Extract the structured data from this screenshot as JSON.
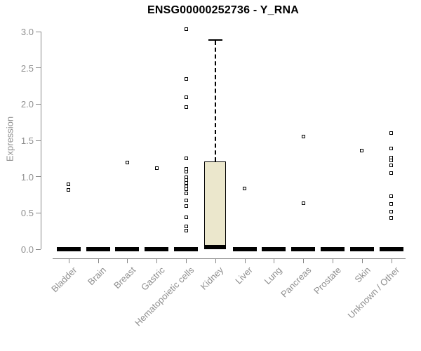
{
  "chart_data": {
    "type": "boxplot",
    "title": "ENSG00000252736 - Y_RNA",
    "xlabel": "",
    "ylabel": "Expression",
    "ylim": [
      0.0,
      3.0
    ],
    "ytick_labels": [
      "0.0",
      "0.5",
      "1.0",
      "1.5",
      "2.0",
      "2.5",
      "3.0"
    ],
    "grid": false,
    "legend": "none",
    "marker": "open-square",
    "colors": {
      "box_fill": "#EBE7CC",
      "box_stroke": "#000000",
      "collapsed_box": "#000000",
      "axis": "#888888",
      "tick_text": "#8f8f8f",
      "title_text": "#000000",
      "background": "#ffffff"
    },
    "categories": [
      "Bladder",
      "Brain",
      "Breast",
      "Gastric",
      "Hematopoietic cells",
      "Kidney",
      "Liver",
      "Lung",
      "Pancreas",
      "Prostate",
      "Skin",
      "Unknown / Other"
    ],
    "series": [
      {
        "category": "Bladder",
        "box": {
          "low": 0,
          "q1": 0,
          "median": 0,
          "q3": 0,
          "high": 0
        },
        "outliers": [
          0.9,
          0.82
        ]
      },
      {
        "category": "Brain",
        "box": {
          "low": 0,
          "q1": 0,
          "median": 0,
          "q3": 0,
          "high": 0
        },
        "outliers": []
      },
      {
        "category": "Breast",
        "box": {
          "low": 0,
          "q1": 0,
          "median": 0,
          "q3": 0,
          "high": 0
        },
        "outliers": [
          1.2
        ]
      },
      {
        "category": "Gastric",
        "box": {
          "low": 0,
          "q1": 0,
          "median": 0,
          "q3": 0,
          "high": 0
        },
        "outliers": [
          1.12
        ]
      },
      {
        "category": "Hematopoietic cells",
        "box": {
          "low": 0,
          "q1": 0,
          "median": 0,
          "q3": 0,
          "high": 0
        },
        "outliers": [
          3.03,
          2.35,
          2.1,
          1.96,
          1.25,
          1.11,
          1.07,
          0.99,
          0.95,
          0.91,
          0.87,
          0.83,
          0.77,
          0.67,
          0.6,
          0.44,
          0.31,
          0.26
        ]
      },
      {
        "category": "Kidney",
        "box": {
          "low": 0,
          "q1": 0,
          "median": 0.03,
          "q3": 1.21,
          "high": 2.87
        },
        "outliers": []
      },
      {
        "category": "Liver",
        "box": {
          "low": 0,
          "q1": 0,
          "median": 0,
          "q3": 0,
          "high": 0
        },
        "outliers": [
          0.84
        ]
      },
      {
        "category": "Lung",
        "box": {
          "low": 0,
          "q1": 0,
          "median": 0,
          "q3": 0,
          "high": 0
        },
        "outliers": []
      },
      {
        "category": "Pancreas",
        "box": {
          "low": 0,
          "q1": 0,
          "median": 0,
          "q3": 0,
          "high": 0
        },
        "outliers": [
          1.55,
          0.63
        ]
      },
      {
        "category": "Prostate",
        "box": {
          "low": 0,
          "q1": 0,
          "median": 0,
          "q3": 0,
          "high": 0
        },
        "outliers": []
      },
      {
        "category": "Skin",
        "box": {
          "low": 0,
          "q1": 0,
          "median": 0,
          "q3": 0,
          "high": 0
        },
        "outliers": [
          1.36
        ]
      },
      {
        "category": "Unknown / Other",
        "box": {
          "low": 0,
          "q1": 0,
          "median": 0,
          "q3": 0,
          "high": 0
        },
        "outliers": [
          1.6,
          1.39,
          1.26,
          1.22,
          1.16,
          1.05,
          0.73,
          0.62,
          0.52,
          0.43
        ]
      }
    ]
  }
}
